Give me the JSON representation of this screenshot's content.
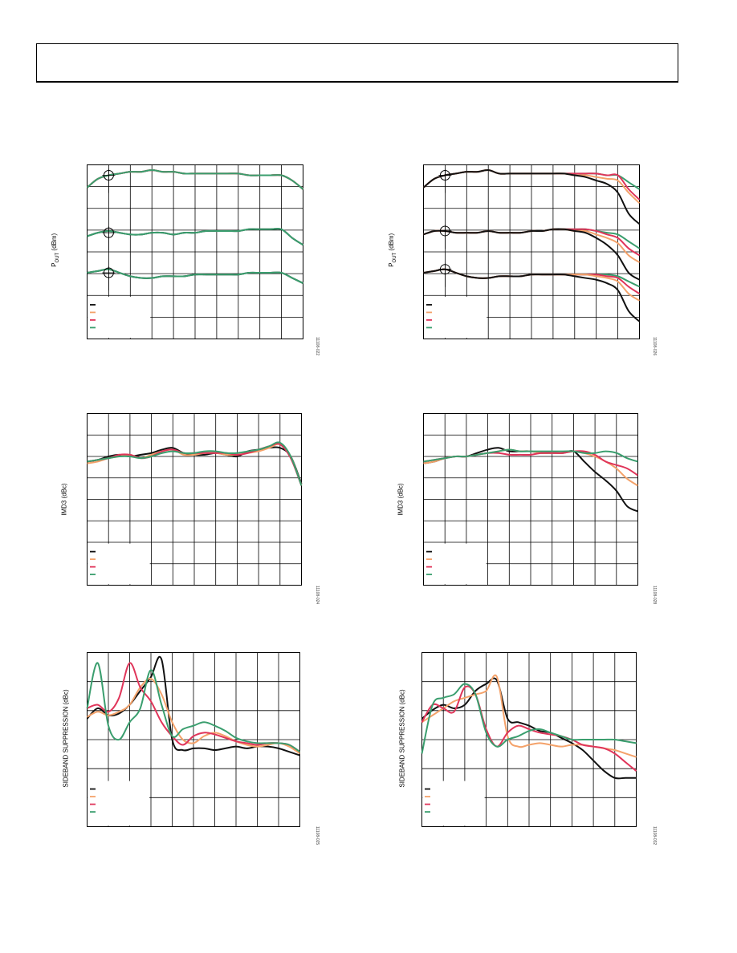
{
  "page": {
    "header_box": ""
  },
  "labels": {
    "pout_left": "P",
    "pout_sub": "OUT",
    "pout_unit": " (dBm)",
    "imd3": "IMD3 (dBc)",
    "sideband": "SIDEBAND SUPPRESSION (dBc)"
  },
  "figure_ids": [
    "11108-022",
    "11108-026",
    "11108-024",
    "11108-028",
    "11108-025",
    "11108-032"
  ],
  "colors": {
    "black": "#111111",
    "orange": "#f4a26a",
    "red": "#e0355a",
    "green": "#3a9e6e",
    "grid": "#000000"
  },
  "chart_data": [
    {
      "type": "line",
      "panel": "top-left",
      "ylabel": "POUT (dBm)",
      "xlim": [
        0,
        100
      ],
      "ylim": [
        0,
        100
      ],
      "x": [
        0,
        5,
        10,
        15,
        20,
        25,
        30,
        35,
        40,
        45,
        50,
        55,
        60,
        65,
        70,
        75,
        80,
        85,
        90,
        95,
        100
      ],
      "series": [
        {
          "color": "black",
          "values": [
            87,
            92,
            94,
            95,
            96,
            96,
            97,
            96,
            96,
            95,
            95,
            95,
            95,
            95,
            95,
            94,
            94,
            94,
            94,
            91,
            86
          ]
        },
        {
          "color": "orange",
          "values": [
            87,
            92,
            94,
            95,
            96,
            96,
            97,
            96,
            96,
            95,
            95,
            95,
            95,
            95,
            95,
            94,
            94,
            94,
            94,
            91,
            86
          ]
        },
        {
          "color": "red",
          "values": [
            87,
            92,
            94,
            95,
            96,
            96,
            97,
            96,
            96,
            95,
            95,
            95,
            95,
            95,
            95,
            94,
            94,
            94,
            94,
            91,
            86
          ]
        },
        {
          "color": "green",
          "values": [
            87,
            92,
            94,
            95,
            96,
            96,
            97,
            96,
            96,
            95,
            95,
            95,
            95,
            95,
            95,
            94,
            94,
            94,
            94,
            91,
            86
          ]
        },
        {
          "color": "black",
          "values": [
            59,
            61,
            62,
            61,
            60,
            60,
            61,
            61,
            60,
            61,
            61,
            62,
            62,
            62,
            62,
            63,
            63,
            63,
            63,
            58,
            54
          ]
        },
        {
          "color": "green",
          "values": [
            59,
            61,
            62,
            61,
            60,
            60,
            61,
            61,
            60,
            61,
            61,
            62,
            62,
            62,
            62,
            63,
            63,
            63,
            63,
            58,
            54
          ]
        },
        {
          "color": "black",
          "values": [
            38,
            39,
            40,
            38,
            36,
            35,
            35,
            36,
            36,
            36,
            37,
            37,
            37,
            37,
            37,
            38,
            38,
            38,
            38,
            35,
            32
          ]
        },
        {
          "color": "green",
          "values": [
            38,
            39,
            40,
            38,
            36,
            35,
            35,
            36,
            36,
            36,
            37,
            37,
            37,
            37,
            37,
            38,
            38,
            38,
            38,
            35,
            32
          ]
        }
      ]
    },
    {
      "type": "line",
      "panel": "top-right",
      "ylabel": "POUT (dBm)",
      "xlim": [
        0,
        100
      ],
      "ylim": [
        0,
        100
      ],
      "x": [
        0,
        5,
        10,
        15,
        20,
        25,
        30,
        35,
        40,
        45,
        50,
        55,
        60,
        65,
        70,
        75,
        80,
        85,
        90,
        95,
        100
      ],
      "series": [
        {
          "color": "green",
          "values": [
            87,
            92,
            94,
            95,
            96,
            96,
            97,
            95,
            95,
            95,
            95,
            95,
            95,
            95,
            95,
            95,
            95,
            94,
            94,
            90,
            86
          ]
        },
        {
          "color": "red",
          "values": [
            87,
            92,
            94,
            95,
            96,
            96,
            97,
            95,
            95,
            95,
            95,
            95,
            95,
            95,
            95,
            95,
            95,
            94,
            94,
            86,
            80
          ]
        },
        {
          "color": "orange",
          "values": [
            87,
            92,
            94,
            95,
            96,
            96,
            97,
            95,
            95,
            95,
            95,
            95,
            95,
            95,
            94,
            94,
            93,
            92,
            91,
            84,
            78
          ]
        },
        {
          "color": "black",
          "values": [
            87,
            92,
            94,
            95,
            96,
            96,
            97,
            95,
            95,
            95,
            95,
            95,
            95,
            95,
            94,
            93,
            91,
            89,
            84,
            72,
            66
          ]
        },
        {
          "color": "green",
          "values": [
            60,
            62,
            62,
            61,
            61,
            61,
            62,
            61,
            61,
            61,
            62,
            62,
            63,
            63,
            63,
            63,
            62,
            61,
            60,
            56,
            52
          ]
        },
        {
          "color": "red",
          "values": [
            60,
            62,
            62,
            61,
            61,
            61,
            62,
            61,
            61,
            61,
            62,
            62,
            63,
            63,
            63,
            63,
            62,
            60,
            58,
            52,
            48
          ]
        },
        {
          "color": "orange",
          "values": [
            60,
            62,
            62,
            61,
            61,
            61,
            62,
            61,
            61,
            61,
            62,
            62,
            63,
            63,
            62,
            62,
            60,
            58,
            55,
            48,
            44
          ]
        },
        {
          "color": "black",
          "values": [
            60,
            62,
            62,
            61,
            61,
            61,
            62,
            61,
            61,
            61,
            62,
            62,
            63,
            63,
            62,
            61,
            58,
            54,
            48,
            38,
            34
          ]
        },
        {
          "color": "green",
          "values": [
            38,
            39,
            40,
            38,
            36,
            35,
            35,
            36,
            36,
            36,
            37,
            37,
            37,
            37,
            37,
            37,
            37,
            37,
            36,
            33,
            30
          ]
        },
        {
          "color": "red",
          "values": [
            38,
            39,
            40,
            38,
            36,
            35,
            35,
            36,
            36,
            36,
            37,
            37,
            37,
            37,
            37,
            37,
            37,
            36,
            35,
            30,
            26
          ]
        },
        {
          "color": "orange",
          "values": [
            38,
            39,
            40,
            38,
            36,
            35,
            35,
            36,
            36,
            36,
            37,
            37,
            37,
            37,
            37,
            37,
            36,
            35,
            33,
            26,
            22
          ]
        },
        {
          "color": "black",
          "values": [
            38,
            39,
            40,
            38,
            36,
            35,
            35,
            36,
            36,
            36,
            37,
            37,
            37,
            37,
            36,
            35,
            34,
            32,
            28,
            16,
            10
          ]
        }
      ]
    },
    {
      "type": "line",
      "panel": "mid-left",
      "ylabel": "IMD3 (dBc)",
      "xlim": [
        0,
        100
      ],
      "ylim": [
        0,
        100
      ],
      "x": [
        0,
        5,
        10,
        15,
        20,
        25,
        30,
        35,
        40,
        45,
        50,
        55,
        60,
        65,
        70,
        75,
        80,
        85,
        90,
        95,
        100
      ],
      "series": [
        {
          "color": "black",
          "values": [
            72,
            73,
            75,
            76,
            75,
            76,
            77,
            79,
            80,
            77,
            76,
            76,
            77,
            76,
            75,
            78,
            79,
            80,
            80,
            75,
            59
          ]
        },
        {
          "color": "orange",
          "values": [
            71,
            72,
            74,
            75,
            76,
            74,
            76,
            78,
            79,
            76,
            76,
            77,
            77,
            76,
            76,
            77,
            78,
            80,
            82,
            75,
            58
          ]
        },
        {
          "color": "red",
          "values": [
            72,
            73,
            74,
            76,
            76,
            74,
            75,
            78,
            79,
            77,
            77,
            77,
            77,
            77,
            76,
            77,
            79,
            81,
            82,
            74,
            58
          ]
        },
        {
          "color": "green",
          "values": [
            72,
            73,
            74,
            75,
            75,
            74,
            75,
            77,
            78,
            77,
            77,
            78,
            78,
            77,
            77,
            78,
            79,
            81,
            83,
            75,
            58
          ]
        }
      ]
    },
    {
      "type": "line",
      "panel": "mid-right",
      "ylabel": "IMD3 (dBc)",
      "xlim": [
        0,
        100
      ],
      "ylim": [
        0,
        100
      ],
      "x": [
        0,
        5,
        10,
        15,
        20,
        25,
        30,
        35,
        40,
        45,
        50,
        55,
        60,
        65,
        70,
        75,
        80,
        85,
        90,
        95,
        100
      ],
      "series": [
        {
          "color": "black",
          "values": [
            71,
            72,
            74,
            75,
            75,
            77,
            79,
            80,
            78,
            78,
            78,
            77,
            77,
            77,
            78,
            72,
            66,
            61,
            55,
            46,
            43
          ]
        },
        {
          "color": "orange",
          "values": [
            71,
            72,
            74,
            75,
            75,
            76,
            77,
            78,
            79,
            78,
            78,
            77,
            77,
            77,
            78,
            77,
            75,
            72,
            68,
            62,
            58
          ]
        },
        {
          "color": "red",
          "values": [
            72,
            73,
            74,
            75,
            75,
            76,
            77,
            77,
            76,
            76,
            76,
            77,
            77,
            77,
            78,
            78,
            76,
            72,
            70,
            68,
            64
          ]
        },
        {
          "color": "green",
          "values": [
            72,
            73,
            74,
            75,
            75,
            76,
            77,
            78,
            79,
            78,
            78,
            78,
            78,
            78,
            78,
            77,
            77,
            78,
            77,
            74,
            72
          ]
        }
      ]
    },
    {
      "type": "line",
      "panel": "bottom-left",
      "ylabel": "SIDEBAND SUPPRESSION (dBc)",
      "xlim": [
        0,
        100
      ],
      "ylim": [
        0,
        100
      ],
      "x": [
        0,
        5,
        10,
        15,
        20,
        25,
        30,
        35,
        40,
        45,
        50,
        55,
        60,
        65,
        70,
        75,
        80,
        85,
        90,
        95,
        100
      ],
      "series": [
        {
          "color": "black",
          "values": [
            62,
            68,
            64,
            65,
            70,
            78,
            86,
            96,
            50,
            44,
            45,
            45,
            44,
            45,
            46,
            45,
            46,
            46,
            45,
            43,
            41
          ]
        },
        {
          "color": "orange",
          "values": [
            63,
            66,
            64,
            66,
            70,
            80,
            85,
            76,
            60,
            50,
            48,
            52,
            54,
            52,
            49,
            47,
            46,
            47,
            48,
            46,
            42
          ]
        },
        {
          "color": "red",
          "values": [
            68,
            70,
            66,
            74,
            94,
            80,
            72,
            60,
            52,
            47,
            52,
            54,
            53,
            51,
            49,
            48,
            47,
            48,
            48,
            47,
            43
          ]
        },
        {
          "color": "green",
          "values": [
            68,
            94,
            58,
            50,
            60,
            68,
            90,
            70,
            52,
            56,
            58,
            60,
            58,
            55,
            51,
            49,
            48,
            48,
            48,
            47,
            43
          ]
        }
      ]
    },
    {
      "type": "line",
      "panel": "bottom-right",
      "ylabel": "SIDEBAND SUPPRESSION (dBc)",
      "xlim": [
        0,
        100
      ],
      "ylim": [
        0,
        100
      ],
      "x": [
        0,
        5,
        10,
        15,
        20,
        25,
        30,
        35,
        40,
        45,
        50,
        55,
        60,
        65,
        70,
        75,
        80,
        85,
        90,
        95,
        100
      ],
      "series": [
        {
          "color": "black",
          "values": [
            62,
            67,
            70,
            68,
            70,
            78,
            82,
            84,
            62,
            60,
            58,
            55,
            54,
            51,
            48,
            44,
            38,
            32,
            28,
            28,
            28
          ]
        },
        {
          "color": "orange",
          "values": [
            60,
            64,
            68,
            72,
            74,
            76,
            78,
            86,
            52,
            46,
            47,
            48,
            47,
            46,
            47,
            47,
            46,
            45,
            44,
            42,
            40
          ]
        },
        {
          "color": "red",
          "values": [
            60,
            70,
            68,
            66,
            80,
            76,
            56,
            46,
            54,
            58,
            56,
            54,
            53,
            52,
            50,
            47,
            46,
            45,
            42,
            37,
            32
          ]
        },
        {
          "color": "green",
          "values": [
            42,
            70,
            74,
            76,
            82,
            76,
            54,
            46,
            50,
            52,
            55,
            56,
            54,
            52,
            50,
            50,
            50,
            50,
            50,
            49,
            48
          ]
        }
      ]
    }
  ]
}
